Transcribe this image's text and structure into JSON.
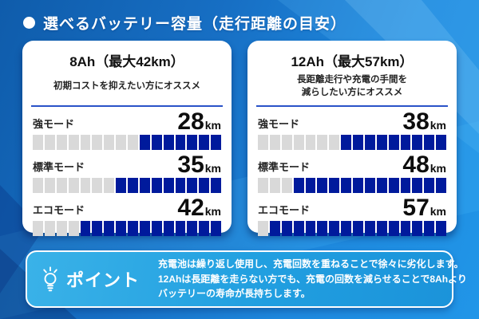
{
  "header": {
    "title": "選べるバッテリー容量（走行距離の目安）"
  },
  "cards": [
    {
      "title": "8Ah（最大42km）",
      "subtitle_lines": [
        "初期コストを抑えたい方にオススメ"
      ],
      "modes": [
        {
          "label": "強モード",
          "value": "28",
          "unit": "km",
          "segments_total": 16,
          "segments_filled": 7
        },
        {
          "label": "標準モード",
          "value": "35",
          "unit": "km",
          "segments_total": 16,
          "segments_filled": 9
        },
        {
          "label": "エコモード",
          "value": "42",
          "unit": "km",
          "segments_total": 16,
          "segments_filled": 12
        }
      ]
    },
    {
      "title": "12Ah（最大57km）",
      "subtitle_lines": [
        "長距離走行や充電の手間を",
        "減らしたい方にオススメ"
      ],
      "modes": [
        {
          "label": "強モード",
          "value": "38",
          "unit": "km",
          "segments_total": 16,
          "segments_filled": 9
        },
        {
          "label": "標準モード",
          "value": "48",
          "unit": "km",
          "segments_total": 16,
          "segments_filled": 13
        },
        {
          "label": "エコモード",
          "value": "57",
          "unit": "km",
          "segments_total": 16,
          "segments_filled": 15
        }
      ]
    }
  ],
  "point": {
    "label": "ポイント",
    "lines": [
      "充電池は繰り返し使用し、充電回数を重ねることで徐々に劣化します。",
      "12Ahは長距離を走らない方でも、充電の回数を減らせることで8Ahより",
      "バッテリーの寿命が長持ちします。"
    ]
  },
  "colors": {
    "seg-on": "#001a9c",
    "seg-off": "#d9d9d9",
    "divider": "#2a52c8",
    "bg-dark": "#0f5cab",
    "bg-light": "#2196e8",
    "point-bg": "#219fe0"
  },
  "chart_data": [
    {
      "type": "bar",
      "title": "8Ah（最大42km）",
      "subtitle": "初期コストを抑えたい方にオススメ",
      "categories": [
        "強モード",
        "標準モード",
        "エコモード"
      ],
      "values": [
        28,
        35,
        42
      ],
      "unit": "km",
      "gauge_segments_total": 16,
      "gauge_segments_filled": [
        7,
        9,
        12
      ],
      "legend_position": "none",
      "grid": false
    },
    {
      "type": "bar",
      "title": "12Ah（最大57km）",
      "subtitle": "長距離走行や充電の手間を減らしたい方にオススメ",
      "categories": [
        "強モード",
        "標準モード",
        "エコモード"
      ],
      "values": [
        38,
        48,
        57
      ],
      "unit": "km",
      "gauge_segments_total": 16,
      "gauge_segments_filled": [
        9,
        13,
        15
      ],
      "legend_position": "none",
      "grid": false
    }
  ]
}
